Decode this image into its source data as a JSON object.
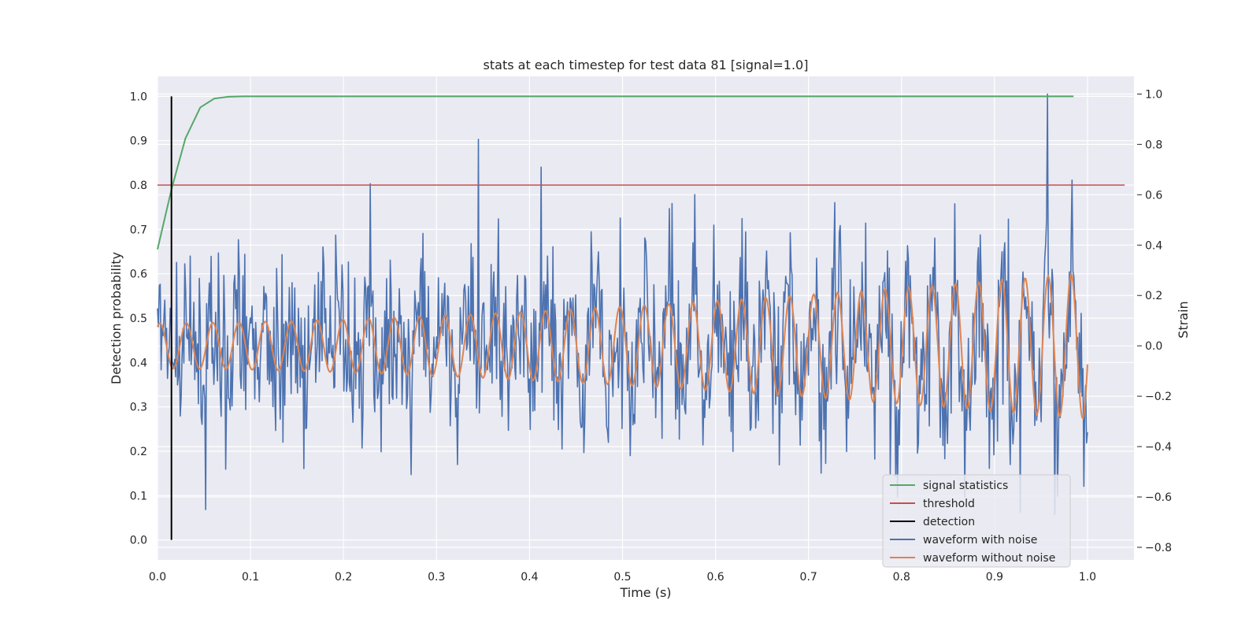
{
  "chart_data": {
    "type": "line",
    "title": "stats at each timestep for test data 81 [signal=1.0]",
    "xlabel": "Time (s)",
    "ylabel_left": "Detection probability",
    "ylabel_right": "Strain",
    "xlim": [
      0.0,
      1.05
    ],
    "ylim_left": [
      -0.045,
      1.045
    ],
    "ylim_right": [
      -0.85,
      1.07
    ],
    "x_ticks": [
      "0.0",
      "0.1",
      "0.2",
      "0.3",
      "0.4",
      "0.5",
      "0.6",
      "0.7",
      "0.8",
      "0.9",
      "1.0"
    ],
    "y_ticks_left": [
      "0.0",
      "0.1",
      "0.2",
      "0.3",
      "0.4",
      "0.5",
      "0.6",
      "0.7",
      "0.8",
      "0.9",
      "1.0"
    ],
    "y_ticks_right": [
      "−0.8",
      "−0.6",
      "−0.4",
      "−0.2",
      "0.0",
      "0.2",
      "0.4",
      "0.6",
      "0.8",
      "1.0"
    ],
    "grid": true,
    "legend_placement": "lower-right",
    "series": [
      {
        "name": "signal statistics",
        "axis": "left",
        "color": "#55a868",
        "x": [
          0.0,
          0.015,
          0.03,
          0.046,
          0.061,
          0.076,
          0.092,
          0.2,
          0.4,
          0.6,
          0.8,
          0.985
        ],
        "values": [
          0.655,
          0.79,
          0.905,
          0.975,
          0.995,
          0.999,
          1.0,
          1.0,
          1.0,
          1.0,
          1.0,
          1.0
        ]
      },
      {
        "name": "threshold",
        "axis": "left",
        "color": "#c44e52",
        "x": [
          0.0,
          1.04
        ],
        "values": [
          0.8,
          0.8
        ]
      },
      {
        "name": "detection",
        "axis": "left",
        "color": "#000000",
        "x": [
          0.015,
          0.015
        ],
        "values": [
          0.0,
          1.0
        ]
      },
      {
        "name": "waveform with noise",
        "axis": "right",
        "color": "#4c72b0",
        "x_start": 0.0,
        "x_end": 1.0,
        "n_points": 1024,
        "amplitude_peak": 1.0,
        "notable_peaks": [
          [
            0.345,
            0.82
          ],
          [
            0.413,
            0.71
          ],
          [
            0.957,
            1.0
          ],
          [
            0.928,
            -0.66
          ],
          [
            0.965,
            -0.67
          ],
          [
            0.052,
            -0.65
          ]
        ]
      },
      {
        "name": "waveform without noise",
        "axis": "right",
        "color": "#dd8452",
        "x_start": 0.0,
        "x_end": 1.0,
        "n_points": 1024,
        "cycles": 35,
        "amplitude_start": 0.09,
        "amplitude_end": 0.29
      }
    ]
  }
}
